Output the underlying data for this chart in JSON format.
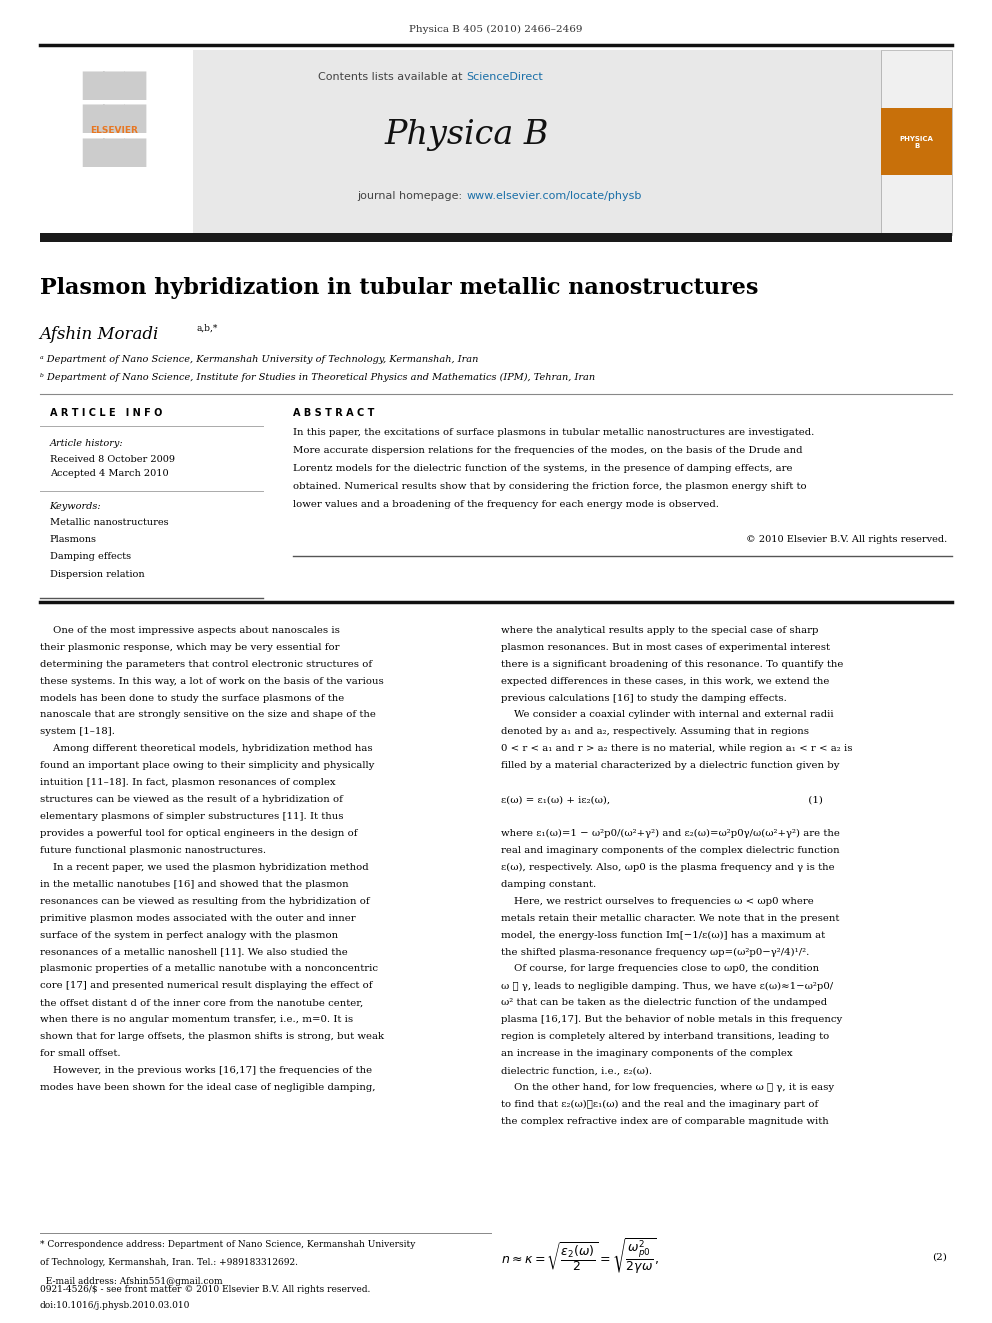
{
  "page_width": 9.92,
  "page_height": 13.23,
  "background_color": "#ffffff",
  "journal_header_text": "Physica B 405 (2010) 2466–2469",
  "header_bg_color": "#e8e8e8",
  "sciencedirect_color": "#1a6fa8",
  "journal_name": "Physica B",
  "homepage_color": "#1a6fa8",
  "thick_bar_color": "#1a1a1a",
  "paper_title": "Plasmon hybridization in tubular metallic nanostructures",
  "author_name": "Afshin Moradi",
  "author_superscript": "a,b,*",
  "affil_a": "ᵃ Department of Nano Science, Kermanshah University of Technology, Kermanshah, Iran",
  "affil_b": "ᵇ Department of Nano Science, Institute for Studies in Theoretical Physics and Mathematics (IPM), Tehran, Iran",
  "article_info_title": "A R T I C L E   I N F O",
  "article_history_label": "Article history:",
  "received_text": "Received 8 October 2009",
  "accepted_text": "Accepted 4 March 2010",
  "keywords_label": "Keywords:",
  "keyword1": "Metallic nanostructures",
  "keyword2": "Plasmons",
  "keyword3": "Damping effects",
  "keyword4": "Dispersion relation",
  "abstract_title": "A B S T R A C T",
  "abstract_text": "In this paper, the excitations of surface plasmons in tubular metallic nanostructures are investigated.\nMore accurate dispersion relations for the frequencies of the modes, on the basis of the Drude and\nLorentz models for the dielectric function of the systems, in the presence of damping effects, are\nobtained. Numerical results show that by considering the friction force, the plasmon energy shift to\nlower values and a broadening of the frequency for each energy mode is observed.",
  "copyright_text": "© 2010 Elsevier B.V. All rights reserved.",
  "elsevier_orange": "#e87722",
  "body_col1_text": "    One of the most impressive aspects about nanoscales is\ntheir plasmonic response, which may be very essential for\ndetermining the parameters that control electronic structures of\nthese systems. In this way, a lot of work on the basis of the various\nmodels has been done to study the surface plasmons of the\nnanoscale that are strongly sensitive on the size and shape of the\nsystem [1–18].\n    Among different theoretical models, hybridization method has\nfound an important place owing to their simplicity and physically\nintuition [11–18]. In fact, plasmon resonances of complex\nstructures can be viewed as the result of a hybridization of\nelementary plasmons of simpler substructures [11]. It thus\nprovides a powerful tool for optical engineers in the design of\nfuture functional plasmonic nanostructures.\n    In a recent paper, we used the plasmon hybridization method\nin the metallic nanotubes [16] and showed that the plasmon\nresonances can be viewed as resulting from the hybridization of\nprimitive plasmon modes associated with the outer and inner\nsurface of the system in perfect analogy with the plasmon\nresonances of a metallic nanoshell [11]. We also studied the\nplasmonic properties of a metallic nanotube with a nonconcentric\ncore [17] and presented numerical result displaying the effect of\nthe offset distant d of the inner core from the nanotube center,\nwhen there is no angular momentum transfer, i.e., m=0. It is\nshown that for large offsets, the plasmon shifts is strong, but weak\nfor small offset.\n    However, in the previous works [16,17] the frequencies of the\nmodes have been shown for the ideal case of negligible damping,",
  "body_col2_text": "where the analytical results apply to the special case of sharp\nplasmon resonances. But in most cases of experimental interest\nthere is a significant broadening of this resonance. To quantify the\nexpected differences in these cases, in this work, we extend the\nprevious calculations [16] to study the damping effects.\n    We consider a coaxial cylinder with internal and external radii\ndenoted by a₁ and a₂, respectively. Assuming that in regions\n0 < r < a₁ and r > a₂ there is no material, while region a₁ < r < a₂ is\nfilled by a material characterized by a dielectric function given by\n\nε(ω) = ε₁(ω) + iε₂(ω),                                                             (1)\n\nwhere ε₁(ω)=1 − ω²p0/(ω²+γ²) and ε₂(ω)=ω²p0γ/ω(ω²+γ²) are the\nreal and imaginary components of the complex dielectric function\nε(ω), respectively. Also, ωp0 is the plasma frequency and γ is the\ndamping constant.\n    Here, we restrict ourselves to frequencies ω < ωp0 where\nmetals retain their metallic character. We note that in the present\nmodel, the energy-loss function Im[−1/ε(ω)] has a maximum at\nthe shifted plasma-resonance frequency ωp=(ω²p0−γ²/4)¹/².\n    Of course, for large frequencies close to ωp0, the condition\nω ≫ γ, leads to negligible damping. Thus, we have ε(ω)≈1−ω²p0/\nω² that can be taken as the dielectric function of the undamped\nplasma [16,17]. But the behavior of noble metals in this frequency\nregion is completely altered by interband transitions, leading to\nan increase in the imaginary components of the complex\ndielectric function, i.e., ε₂(ω).\n    On the other hand, for low frequencies, where ω ≪ γ, it is easy\nto find that ε₂(ω)≫ε₁(ω) and the real and the imaginary part of\nthe complex refractive index are of comparable magnitude with",
  "footnote_text": "* Correspondence address: Department of Nano Science, Kermanshah University\nof Technology, Kermanshah, Iran. Tel.: +989183312692.\n  E-mail address: Afshin551@gmail.com",
  "footnote_line2": "0921-4526/$ - see front matter © 2010 Elsevier B.V. All rights reserved.",
  "footnote_line3": "doi:10.1016/j.physb.2010.03.010"
}
